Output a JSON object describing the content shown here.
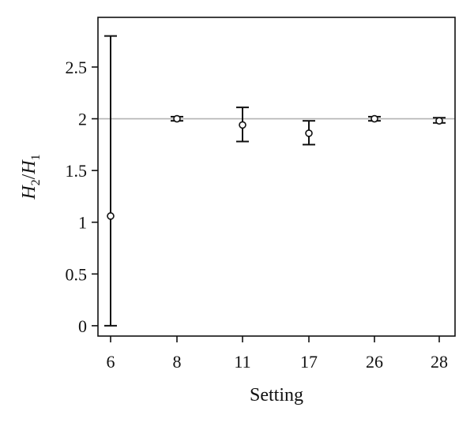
{
  "chart_data": {
    "type": "scatter",
    "title": "",
    "xlabel": "Setting",
    "ylabel": {
      "base1": "H",
      "sub1": "2",
      "sep": "/",
      "base2": "H",
      "sub2": "1"
    },
    "categories": [
      "6",
      "8",
      "11",
      "17",
      "26",
      "28"
    ],
    "y_ticks": [
      "0",
      "0.5",
      "1",
      "1.5",
      "2",
      "2.5"
    ],
    "ylim": [
      -0.1,
      2.98
    ],
    "grid": false,
    "reference_line": 2,
    "series": [
      {
        "values": [
          1.06,
          2.0,
          1.94,
          1.86,
          2.0,
          1.98
        ],
        "lower": [
          0.0,
          1.98,
          1.78,
          1.75,
          1.98,
          1.96
        ],
        "upper": [
          2.8,
          2.02,
          2.11,
          1.98,
          2.02,
          2.01
        ]
      }
    ],
    "colors": {
      "axis": "#111111",
      "marker": "#111111",
      "reference": "#b3b3b3"
    }
  }
}
